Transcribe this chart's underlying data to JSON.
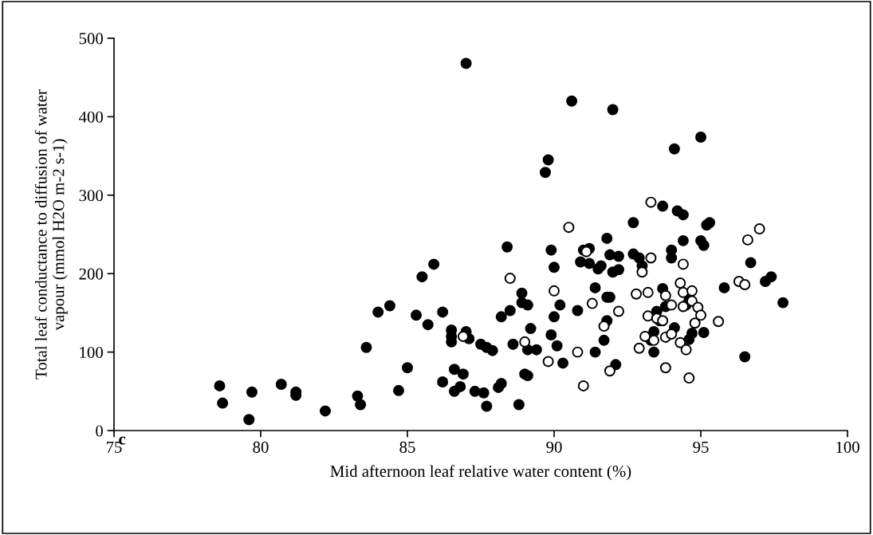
{
  "chart_data": {
    "type": "scatter",
    "xlabel": "Mid afternoon leaf relative water content (%)",
    "ylabel": "Total leaf conductance to diffusion of water\nvapour (mmol H2O m-2 s-1)",
    "annotations": [
      "c"
    ],
    "xlim": [
      75,
      100
    ],
    "xticks": [
      75,
      80,
      85,
      90,
      95,
      100
    ],
    "ylim": [
      0,
      500
    ],
    "yticks": [
      0,
      100,
      200,
      300,
      400,
      500
    ],
    "grid": false,
    "legend": false,
    "marker": "circle",
    "series": [
      {
        "color": "#000000",
        "x": [
          78.6,
          78.7,
          79.6,
          79.7,
          80.7,
          81.2,
          81.2,
          82.2,
          83.3,
          83.4,
          83.6,
          84.0,
          84.4,
          84.7,
          85.0,
          85.3,
          85.5,
          85.7,
          85.9,
          86.2,
          86.2,
          86.5,
          86.5,
          86.5,
          86.6,
          86.6,
          86.8,
          86.9,
          87.0,
          87.0,
          87.1,
          87.3,
          87.5,
          87.6,
          87.7,
          87.7,
          87.9,
          88.1,
          88.2,
          88.2,
          88.4,
          88.5,
          88.6,
          88.8,
          88.9,
          88.9,
          89.0,
          89.1,
          89.1,
          89.1,
          89.2,
          89.4,
          89.7,
          89.8,
          89.9,
          89.9,
          90.0,
          90.0,
          90.1,
          90.2,
          90.3,
          90.6,
          90.8,
          90.9,
          91.0,
          91.2,
          91.2,
          91.4,
          91.4,
          91.5,
          91.6,
          91.7,
          91.8,
          91.8,
          91.8,
          91.9,
          91.9,
          92.0,
          92.0,
          92.1,
          92.2,
          92.2,
          92.7,
          92.7,
          92.9,
          93.0,
          93.3,
          93.4,
          93.4,
          93.5,
          93.6,
          93.7,
          93.7,
          93.8,
          94.0,
          94.0,
          94.1,
          94.1,
          94.2,
          94.4,
          94.4,
          94.5,
          94.6,
          94.6,
          94.7,
          95.0,
          95.0,
          95.1,
          95.1,
          95.3,
          95.2,
          95.8,
          96.5,
          96.7,
          97.2,
          97.4,
          97.8
        ],
        "values": [
          57,
          35,
          14,
          49,
          59,
          49,
          45,
          25,
          44,
          33,
          106,
          151,
          159,
          51,
          80,
          147,
          196,
          135,
          212,
          151,
          62,
          128,
          120,
          113,
          78,
          50,
          56,
          72,
          468,
          126,
          117,
          50,
          110,
          48,
          106,
          31,
          102,
          55,
          60,
          145,
          234,
          153,
          110,
          33,
          163,
          175,
          72,
          160,
          103,
          70,
          130,
          103,
          329,
          345,
          122,
          230,
          208,
          145,
          108,
          160,
          86,
          420,
          153,
          215,
          230,
          213,
          232,
          100,
          182,
          206,
          210,
          115,
          245,
          140,
          170,
          224,
          170,
          409,
          202,
          84,
          205,
          222,
          225,
          265,
          220,
          210,
          115,
          126,
          100,
          152,
          140,
          286,
          181,
          158,
          230,
          220,
          131,
          359,
          280,
          275,
          242,
          160,
          170,
          116,
          124,
          374,
          242,
          236,
          125,
          265,
          262,
          182,
          94,
          214,
          190,
          196,
          163
        ]
      },
      {
        "color": "#ffffff",
        "x": [
          86.9,
          88.5,
          89.0,
          89.8,
          90.0,
          90.5,
          90.8,
          91.0,
          91.1,
          91.3,
          91.7,
          91.9,
          92.2,
          92.8,
          92.9,
          93.0,
          93.1,
          93.2,
          93.2,
          93.3,
          93.3,
          93.4,
          93.5,
          93.7,
          93.8,
          93.8,
          93.8,
          94.0,
          94.0,
          94.3,
          94.3,
          94.4,
          94.4,
          94.4,
          94.5,
          94.6,
          94.7,
          94.7,
          94.8,
          94.9,
          95.0,
          95.6,
          96.3,
          96.5,
          96.6,
          97.0
        ],
        "values": [
          120,
          194,
          113,
          88,
          178,
          259,
          100,
          57,
          228,
          162,
          133,
          76,
          152,
          174,
          105,
          202,
          120,
          176,
          146,
          291,
          220,
          115,
          143,
          140,
          80,
          172,
          119,
          160,
          123,
          112,
          188,
          158,
          176,
          212,
          103,
          67,
          178,
          165,
          137,
          157,
          147,
          139,
          190,
          186,
          243,
          257
        ]
      }
    ]
  }
}
